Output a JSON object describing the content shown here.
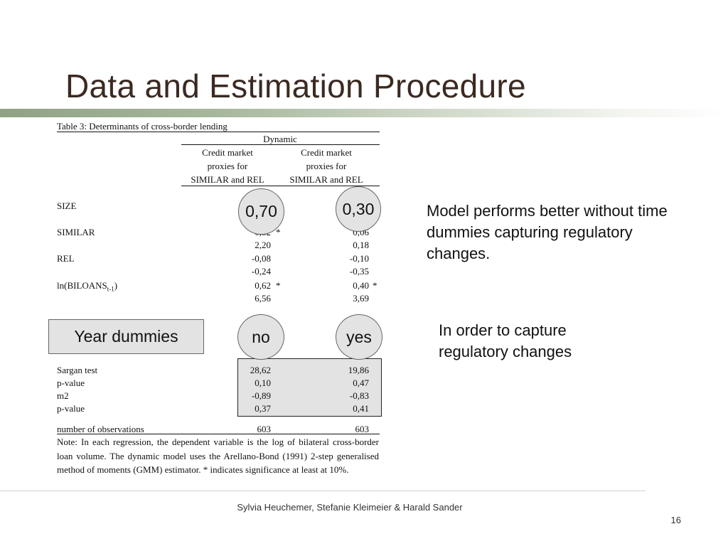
{
  "slide": {
    "title": "Data and Estimation Procedure",
    "footer": "Sylvia Heuchemer, Stefanie Kleimeier & Harald Sander",
    "page_number": "16"
  },
  "table": {
    "caption": "Table 3: Determinants of cross-border lending",
    "group_header": "Dynamic",
    "col_headers": [
      [
        "Credit market",
        "proxies for",
        "SIMILAR and REL"
      ],
      [
        "Credit market",
        "proxies for",
        "SIMILAR and REL"
      ]
    ],
    "rows": [
      {
        "label": "SIZE",
        "v1": "",
        "v2": ""
      },
      {
        "label": "SIMILAR",
        "v1": "0,52",
        "s1": "*",
        "v2": "0,06",
        "s2": ""
      },
      {
        "label": "",
        "v1": "2,20",
        "v2": "0,18"
      },
      {
        "label": "REL",
        "v1": "-0,08",
        "v2": "-0,10"
      },
      {
        "label": "",
        "v1": "-0,24",
        "v2": "-0,35"
      },
      {
        "label": "ln(BILOANS",
        "label_sub": "t-1",
        "label_end": ")",
        "v1": "0,62",
        "s1": "*",
        "v2": "0,40",
        "s2": "*"
      },
      {
        "label": "",
        "v1": "6,56",
        "v2": "3,69"
      }
    ],
    "stats": [
      {
        "label": "Sargan test",
        "v1": "28,62",
        "v2": "19,86"
      },
      {
        "label": "p-value",
        "v1": "0,10",
        "v2": "0,47"
      },
      {
        "label": "m2",
        "v1": "-0,89",
        "v2": "-0,83"
      },
      {
        "label": "p-value",
        "v1": "0,37",
        "v2": "0,41"
      }
    ],
    "observations": {
      "label": "number of observations",
      "v1": "603",
      "v2": "603"
    },
    "note": "Note: In each regression, the dependent variable is the log of bilateral cross-border loan volume. The dynamic model uses the Arellano-Bond (1991) 2-step generalised method of moments (GMM) estimator. * indicates significance at least at 10%."
  },
  "callouts": {
    "size_col1": "0,70",
    "size_col2": "0,30",
    "dummies_label": "Year dummies",
    "dummies_col1": "no",
    "dummies_col2": "yes"
  },
  "bullets": {
    "first": "Model performs better without time dummies capturing regulatory changes.",
    "second": "In order to capture regulatory changes"
  }
}
